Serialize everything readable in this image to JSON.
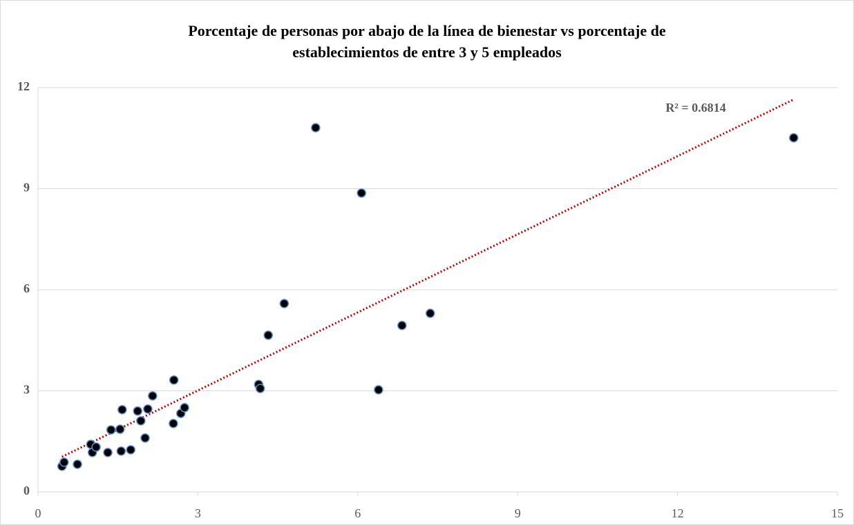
{
  "chart_data": {
    "type": "scatter",
    "title": [
      "Porcentaje de personas por abajo de la línea de bienestar vs porcentaje de",
      "establecimientos de entre 3 y 5 empleados"
    ],
    "x": [
      0.45,
      0.49,
      0.74,
      0.99,
      1.02,
      1.09,
      1.31,
      1.37,
      1.54,
      1.56,
      1.58,
      1.74,
      1.87,
      1.93,
      2.01,
      2.06,
      2.15,
      2.54,
      2.55,
      2.68,
      2.75,
      4.14,
      4.17,
      4.32,
      4.62,
      5.21,
      6.07,
      6.39,
      6.83,
      7.36,
      14.18
    ],
    "values": [
      0.76,
      0.88,
      0.82,
      1.41,
      1.17,
      1.33,
      1.17,
      1.84,
      1.86,
      1.21,
      2.44,
      1.25,
      2.4,
      2.11,
      1.6,
      2.46,
      2.85,
      2.03,
      3.32,
      2.33,
      2.5,
      3.19,
      3.07,
      4.65,
      5.59,
      10.81,
      8.87,
      3.03,
      4.94,
      5.3,
      10.51
    ],
    "color": "#000000",
    "edge_color": "#5b8bc9",
    "xlim": [
      0,
      15
    ],
    "xticks": [
      0,
      3,
      6,
      9,
      12,
      15
    ],
    "ylim": [
      0,
      12
    ],
    "yticks": [
      0,
      3,
      6,
      9,
      12
    ],
    "grid": true,
    "trendline": {
      "x": [
        0.45,
        14.18
      ],
      "y": [
        1.04,
        11.65
      ],
      "color": "#c00000",
      "label": "R² = 0.6814"
    }
  }
}
